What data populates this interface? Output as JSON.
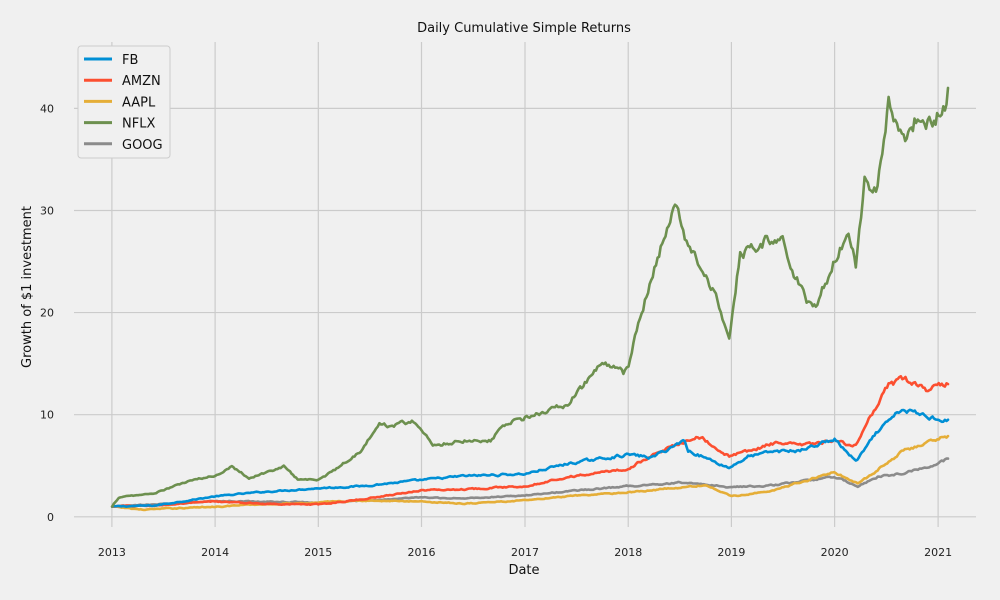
{
  "chart_data": {
    "type": "line",
    "title": "Daily Cumulative Simple Returns",
    "xlabel": "Date",
    "ylabel": "Growth of $1 investment",
    "xlim": [
      "2012-08-20",
      "2021-05-15"
    ],
    "ylim": [
      -1,
      46.5
    ],
    "x_ticks": [
      "2013-01-01",
      "2014-01-01",
      "2015-01-01",
      "2016-01-01",
      "2017-01-01",
      "2018-01-01",
      "2019-01-01",
      "2020-01-01",
      "2021-01-01"
    ],
    "x_tick_labels": [
      "2013",
      "2014",
      "2015",
      "2016",
      "2017",
      "2018",
      "2019",
      "2020",
      "2021"
    ],
    "y_ticks": [
      0,
      10,
      20,
      30,
      40
    ],
    "y_tick_labels": [
      "0",
      "10",
      "20",
      "30",
      "40"
    ],
    "grid": true,
    "legend_position": "upper-left",
    "series": [
      {
        "name": "FB",
        "color": "#008fd5",
        "x": [
          "2013-01-02",
          "2013-06-01",
          "2014-01-01",
          "2014-06-01",
          "2015-01-01",
          "2015-06-01",
          "2016-01-01",
          "2016-06-01",
          "2017-01-01",
          "2017-06-01",
          "2018-01-01",
          "2018-03-25",
          "2018-07-20",
          "2018-08-01",
          "2018-12-24",
          "2019-03-01",
          "2019-06-01",
          "2019-09-01",
          "2020-01-01",
          "2020-03-16",
          "2020-06-01",
          "2020-08-26",
          "2020-12-01",
          "2021-02-05"
        ],
        "y": [
          1.0,
          1.1,
          2.0,
          2.4,
          2.8,
          3.0,
          3.6,
          4.0,
          4.2,
          5.2,
          6.1,
          5.8,
          7.5,
          6.5,
          4.8,
          5.9,
          6.4,
          6.5,
          7.6,
          5.4,
          8.3,
          10.5,
          9.8,
          9.5
        ]
      },
      {
        "name": "AMZN",
        "color": "#fc4f30",
        "x": [
          "2013-01-02",
          "2013-06-01",
          "2014-01-01",
          "2014-06-01",
          "2015-01-01",
          "2015-06-01",
          "2016-01-01",
          "2016-06-01",
          "2017-01-01",
          "2017-06-01",
          "2018-01-01",
          "2018-03-25",
          "2018-09-04",
          "2018-12-24",
          "2019-06-01",
          "2019-09-01",
          "2020-01-01",
          "2020-03-16",
          "2020-05-01",
          "2020-07-10",
          "2020-09-02",
          "2020-12-01",
          "2021-02-05"
        ],
        "y": [
          1.0,
          1.1,
          1.5,
          1.3,
          1.2,
          1.7,
          2.6,
          2.7,
          3.0,
          3.9,
          4.7,
          6.0,
          8.0,
          5.9,
          7.2,
          7.0,
          7.4,
          7.0,
          9.4,
          12.8,
          13.5,
          12.4,
          13.0
        ]
      },
      {
        "name": "AAPL",
        "color": "#e5ae38",
        "x": [
          "2013-01-02",
          "2013-04-19",
          "2014-01-01",
          "2014-06-01",
          "2015-01-01",
          "2015-06-01",
          "2016-01-01",
          "2016-06-01",
          "2017-01-01",
          "2017-06-01",
          "2018-01-01",
          "2018-10-03",
          "2019-01-03",
          "2019-06-01",
          "2019-12-31",
          "2020-03-23",
          "2020-06-01",
          "2020-08-31",
          "2020-12-29",
          "2021-02-05"
        ],
        "y": [
          1.0,
          0.7,
          1.0,
          1.2,
          1.4,
          1.6,
          1.5,
          1.3,
          1.6,
          2.0,
          2.4,
          3.1,
          2.0,
          2.6,
          4.4,
          3.2,
          4.6,
          6.5,
          7.6,
          7.9
        ]
      },
      {
        "name": "NFLX",
        "color": "#6d904f",
        "x": [
          "2013-01-02",
          "2013-01-25",
          "2013-06-01",
          "2013-10-01",
          "2014-01-01",
          "2014-03-01",
          "2014-05-01",
          "2014-09-01",
          "2014-10-20",
          "2015-01-01",
          "2015-03-01",
          "2015-06-01",
          "2015-08-05",
          "2015-10-01",
          "2015-12-04",
          "2016-02-10",
          "2016-06-01",
          "2016-09-01",
          "2016-10-20",
          "2017-01-01",
          "2017-06-01",
          "2017-10-01",
          "2017-12-15",
          "2018-01-02",
          "2018-03-01",
          "2018-06-21",
          "2018-08-01",
          "2018-10-03",
          "2018-12-24",
          "2019-02-01",
          "2019-05-01",
          "2019-07-01",
          "2019-09-24",
          "2019-11-01",
          "2020-01-02",
          "2020-02-19",
          "2020-03-16",
          "2020-04-16",
          "2020-06-01",
          "2020-07-10",
          "2020-09-01",
          "2020-10-15",
          "2020-12-01",
          "2021-01-25",
          "2021-02-05"
        ],
        "y": [
          1.0,
          1.9,
          2.3,
          3.5,
          4.0,
          5.0,
          3.8,
          4.9,
          3.7,
          3.6,
          4.6,
          6.5,
          9.0,
          9.0,
          9.4,
          7.0,
          7.5,
          7.5,
          9.0,
          9.7,
          11.0,
          15.0,
          14.0,
          15.0,
          21.0,
          31.0,
          26.0,
          24.0,
          18.0,
          26.0,
          27.0,
          27.0,
          21.0,
          21.0,
          25.0,
          28.0,
          25.0,
          33.0,
          32.0,
          41.0,
          37.0,
          39.0,
          39.0,
          40.0,
          42.0
        ]
      },
      {
        "name": "GOOG",
        "color": "#8b8b8b",
        "x": [
          "2013-01-02",
          "2013-06-01",
          "2014-01-01",
          "2014-06-01",
          "2015-01-01",
          "2015-06-01",
          "2016-01-01",
          "2016-06-01",
          "2017-01-01",
          "2017-06-01",
          "2018-01-01",
          "2018-07-26",
          "2018-12-24",
          "2019-06-01",
          "2019-12-31",
          "2020-03-23",
          "2020-06-01",
          "2020-09-01",
          "2020-12-01",
          "2021-02-05"
        ],
        "y": [
          1.0,
          1.2,
          1.55,
          1.5,
          1.4,
          1.55,
          1.9,
          1.8,
          2.1,
          2.5,
          3.0,
          3.4,
          2.9,
          3.1,
          3.9,
          3.0,
          3.9,
          4.3,
          4.9,
          5.7
        ]
      }
    ]
  }
}
